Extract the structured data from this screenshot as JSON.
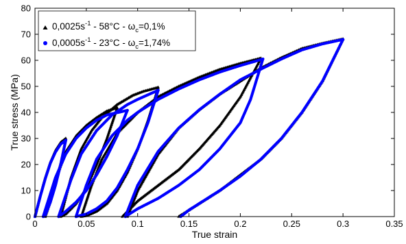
{
  "chart_data": {
    "type": "scatter",
    "xlabel": "True strain",
    "ylabel": "True stress (MPa)",
    "xlim": [
      0,
      0.35
    ],
    "ylim": [
      0,
      80
    ],
    "x_ticks": [
      "0",
      "0.05",
      "0.1",
      "0.15",
      "0.2",
      "0.25",
      "0.3",
      "0.35"
    ],
    "y_ticks": [
      "0",
      "10",
      "20",
      "30",
      "40",
      "50",
      "60",
      "70",
      "80"
    ],
    "grid": false,
    "legend_position": "top-left",
    "legend": [
      {
        "base": "0,0025s",
        "sup": "-1",
        "mid": " - 58°C - ω",
        "sub": "c",
        "tail": "=0,1%",
        "marker": "triangle",
        "color": "#000000"
      },
      {
        "base": "0,0005s",
        "sup": "-1",
        "mid": " - 23°C - ω",
        "sub": "c",
        "tail": "=1,74%",
        "marker": "circle",
        "color": "#0000ff"
      }
    ],
    "series": [
      {
        "marker": "triangle",
        "color": "#000000",
        "cycles": [
          {
            "loading": [
              [
                0.0,
                0
              ],
              [
                0.005,
                8
              ],
              [
                0.01,
                15
              ],
              [
                0.015,
                21
              ],
              [
                0.02,
                25.5
              ],
              [
                0.025,
                28.5
              ],
              [
                0.03,
                30
              ]
            ],
            "unloading": [
              [
                0.03,
                30
              ],
              [
                0.026,
                22
              ],
              [
                0.02,
                13
              ],
              [
                0.015,
                6
              ],
              [
                0.01,
                0
              ]
            ]
          },
          {
            "loading": [
              [
                0.01,
                0
              ],
              [
                0.02,
                14
              ],
              [
                0.03,
                25
              ],
              [
                0.04,
                31
              ],
              [
                0.05,
                35
              ],
              [
                0.06,
                38
              ],
              [
                0.07,
                40.5
              ],
              [
                0.08,
                41.8
              ]
            ],
            "unloading": [
              [
                0.08,
                41.8
              ],
              [
                0.07,
                30
              ],
              [
                0.06,
                20
              ],
              [
                0.05,
                11
              ],
              [
                0.04,
                5
              ],
              [
                0.03,
                1
              ],
              [
                0.025,
                0
              ]
            ]
          },
          {
            "loading": [
              [
                0.025,
                0
              ],
              [
                0.035,
                15
              ],
              [
                0.045,
                26
              ],
              [
                0.055,
                33
              ],
              [
                0.065,
                38
              ],
              [
                0.08,
                43
              ],
              [
                0.095,
                46.5
              ],
              [
                0.105,
                48
              ],
              [
                0.12,
                49.6
              ]
            ],
            "unloading": [
              [
                0.12,
                49.6
              ],
              [
                0.11,
                37
              ],
              [
                0.1,
                26
              ],
              [
                0.09,
                17
              ],
              [
                0.08,
                10
              ],
              [
                0.07,
                5
              ],
              [
                0.06,
                2
              ],
              [
                0.05,
                0.3
              ],
              [
                0.045,
                0
              ]
            ]
          },
          {
            "loading": [
              [
                0.045,
                0
              ],
              [
                0.055,
                12
              ],
              [
                0.065,
                22
              ],
              [
                0.08,
                32
              ],
              [
                0.1,
                40
              ],
              [
                0.12,
                46
              ],
              [
                0.14,
                50
              ],
              [
                0.16,
                53.5
              ],
              [
                0.18,
                56.5
              ],
              [
                0.2,
                58.8
              ],
              [
                0.22,
                60.8
              ]
            ],
            "unloading": [
              [
                0.22,
                60.8
              ],
              [
                0.2,
                46
              ],
              [
                0.18,
                35
              ],
              [
                0.16,
                26
              ],
              [
                0.14,
                18
              ],
              [
                0.12,
                12
              ],
              [
                0.1,
                6
              ],
              [
                0.09,
                2
              ],
              [
                0.085,
                0
              ]
            ]
          },
          {
            "loading": [
              [
                0.09,
                0
              ],
              [
                0.1,
                10
              ],
              [
                0.12,
                24
              ],
              [
                0.14,
                34
              ],
              [
                0.16,
                41
              ],
              [
                0.18,
                47
              ],
              [
                0.2,
                52
              ],
              [
                0.22,
                57
              ],
              [
                0.24,
                61
              ],
              [
                0.26,
                64.5
              ],
              [
                0.28,
                66.5
              ],
              [
                0.3,
                68.2
              ]
            ],
            "unloading": [
              [
                0.3,
                68.2
              ],
              [
                0.28,
                52
              ],
              [
                0.26,
                40
              ],
              [
                0.24,
                30
              ],
              [
                0.22,
                22
              ],
              [
                0.2,
                16
              ],
              [
                0.18,
                10
              ],
              [
                0.16,
                5
              ],
              [
                0.15,
                2.5
              ],
              [
                0.14,
                0
              ]
            ]
          }
        ]
      },
      {
        "marker": "circle",
        "color": "#0000ff",
        "cycles": [
          {
            "loading": [
              [
                0.0,
                0
              ],
              [
                0.005,
                7.5
              ],
              [
                0.01,
                14.5
              ],
              [
                0.015,
                20.5
              ],
              [
                0.02,
                24.8
              ],
              [
                0.025,
                27.8
              ],
              [
                0.03,
                29.3
              ]
            ],
            "unloading": [
              [
                0.03,
                29.3
              ],
              [
                0.025,
                20
              ],
              [
                0.02,
                12
              ],
              [
                0.015,
                5.5
              ],
              [
                0.01,
                0.5
              ],
              [
                0.008,
                0
              ]
            ]
          },
          {
            "loading": [
              [
                0.008,
                0
              ],
              [
                0.02,
                15
              ],
              [
                0.03,
                24
              ],
              [
                0.04,
                30
              ],
              [
                0.05,
                34
              ],
              [
                0.06,
                37
              ],
              [
                0.07,
                39
              ],
              [
                0.09,
                40.8
              ]
            ],
            "unloading": [
              [
                0.09,
                40.8
              ],
              [
                0.08,
                31
              ],
              [
                0.07,
                23
              ],
              [
                0.06,
                16
              ],
              [
                0.05,
                10
              ],
              [
                0.04,
                5.5
              ],
              [
                0.03,
                2
              ],
              [
                0.023,
                0
              ]
            ]
          },
          {
            "loading": [
              [
                0.023,
                0
              ],
              [
                0.035,
                14
              ],
              [
                0.045,
                24
              ],
              [
                0.06,
                33
              ],
              [
                0.075,
                39
              ],
              [
                0.09,
                43
              ],
              [
                0.1,
                45
              ],
              [
                0.12,
                48.5
              ]
            ],
            "unloading": [
              [
                0.12,
                48.5
              ],
              [
                0.11,
                36
              ],
              [
                0.1,
                26
              ],
              [
                0.09,
                18
              ],
              [
                0.08,
                11
              ],
              [
                0.07,
                6
              ],
              [
                0.06,
                3
              ],
              [
                0.05,
                1
              ],
              [
                0.04,
                0
              ]
            ]
          },
          {
            "loading": [
              [
                0.04,
                0
              ],
              [
                0.05,
                12
              ],
              [
                0.06,
                22
              ],
              [
                0.075,
                31
              ],
              [
                0.09,
                37
              ],
              [
                0.1,
                40
              ],
              [
                0.12,
                45
              ],
              [
                0.14,
                49
              ],
              [
                0.16,
                52.5
              ],
              [
                0.18,
                55.5
              ],
              [
                0.2,
                58
              ],
              [
                0.222,
                60.5
              ]
            ],
            "unloading": [
              [
                0.222,
                60.5
              ],
              [
                0.21,
                45
              ],
              [
                0.2,
                36
              ],
              [
                0.18,
                26
              ],
              [
                0.16,
                18
              ],
              [
                0.14,
                12
              ],
              [
                0.12,
                7
              ],
              [
                0.1,
                3
              ],
              [
                0.09,
                0.5
              ],
              [
                0.088,
                0
              ]
            ]
          },
          {
            "loading": [
              [
                0.088,
                0
              ],
              [
                0.1,
                12
              ],
              [
                0.12,
                25
              ],
              [
                0.14,
                34
              ],
              [
                0.16,
                41
              ],
              [
                0.18,
                47
              ],
              [
                0.2,
                52.5
              ],
              [
                0.222,
                57
              ],
              [
                0.24,
                60.5
              ],
              [
                0.26,
                64
              ],
              [
                0.28,
                66.3
              ],
              [
                0.3,
                68
              ]
            ],
            "unloading": [
              [
                0.3,
                68
              ],
              [
                0.28,
                52
              ],
              [
                0.26,
                40
              ],
              [
                0.24,
                30
              ],
              [
                0.22,
                22
              ],
              [
                0.2,
                15.5
              ],
              [
                0.18,
                10
              ],
              [
                0.16,
                5
              ],
              [
                0.15,
                2.5
              ],
              [
                0.142,
                0
              ]
            ]
          }
        ]
      }
    ]
  }
}
